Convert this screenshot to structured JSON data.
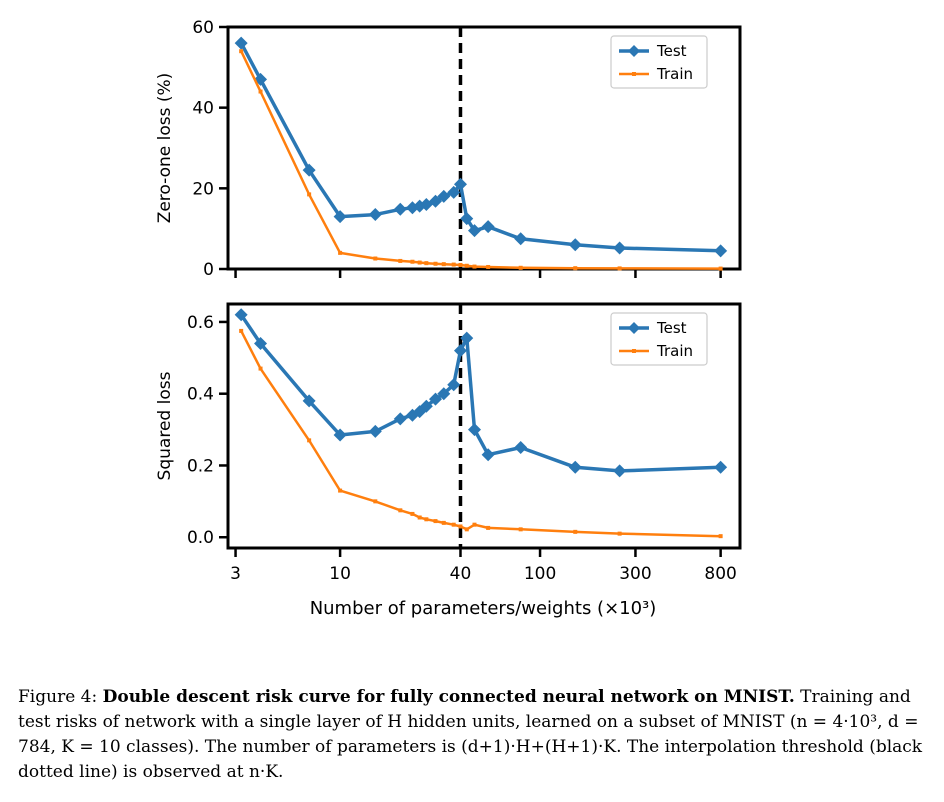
{
  "figure": {
    "xlabel": "Number of parameters/weights (×10³)",
    "x_ticks": [
      3,
      10,
      40,
      100,
      300,
      800
    ],
    "x_tick_labels": [
      "3",
      "10",
      "40",
      "100",
      "300",
      "800"
    ],
    "threshold_x": 40,
    "colors": {
      "test": "#2a77b4",
      "train": "#ff7f0e",
      "threshold": "#000000"
    }
  },
  "chart_data": [
    {
      "type": "line",
      "xscale": "log",
      "ylabel": "Zero-one loss (%)",
      "ylim": [
        0,
        60
      ],
      "y_ticks": [
        0,
        20,
        40,
        60
      ],
      "y_tick_labels": [
        "0",
        "20",
        "40",
        "60"
      ],
      "legend": "top-right",
      "series": [
        {
          "name": "Test",
          "x": [
            3.2,
            4,
            7,
            10,
            15,
            20,
            23,
            25,
            27,
            30,
            33,
            37,
            40,
            43,
            47,
            55,
            80,
            150,
            250,
            800
          ],
          "y": [
            56,
            47,
            24.5,
            13,
            13.5,
            14.8,
            15.2,
            15.6,
            16,
            16.8,
            18,
            19,
            21,
            12.5,
            9.5,
            10.5,
            7.5,
            6,
            5.2,
            4.5
          ]
        },
        {
          "name": "Train",
          "x": [
            3.2,
            4,
            7,
            10,
            15,
            20,
            23,
            25,
            27,
            30,
            33,
            37,
            40,
            43,
            47,
            55,
            80,
            150,
            250,
            800
          ],
          "y": [
            54,
            44,
            18.5,
            4,
            2.6,
            2,
            1.8,
            1.6,
            1.45,
            1.3,
            1.2,
            1.1,
            1.0,
            0.8,
            0.6,
            0.5,
            0.3,
            0.2,
            0.15,
            0.1
          ]
        }
      ]
    },
    {
      "type": "line",
      "xscale": "log",
      "ylabel": "Squared loss",
      "ylim": [
        -0.03,
        0.65
      ],
      "y_ticks": [
        0.0,
        0.2,
        0.4,
        0.6
      ],
      "y_tick_labels": [
        "0.0",
        "0.2",
        "0.4",
        "0.6"
      ],
      "legend": "top-right",
      "series": [
        {
          "name": "Test",
          "x": [
            3.2,
            4,
            7,
            10,
            15,
            20,
            23,
            25,
            27,
            30,
            33,
            37,
            40,
            43,
            47,
            55,
            80,
            150,
            250,
            800
          ],
          "y": [
            0.62,
            0.54,
            0.38,
            0.285,
            0.295,
            0.33,
            0.34,
            0.35,
            0.365,
            0.385,
            0.4,
            0.425,
            0.52,
            0.555,
            0.3,
            0.23,
            0.25,
            0.195,
            0.185,
            0.195
          ]
        },
        {
          "name": "Train",
          "x": [
            3.2,
            4,
            7,
            10,
            15,
            20,
            23,
            25,
            27,
            30,
            33,
            37,
            40,
            43,
            47,
            55,
            80,
            150,
            250,
            800
          ],
          "y": [
            0.575,
            0.47,
            0.27,
            0.13,
            0.1,
            0.075,
            0.065,
            0.055,
            0.05,
            0.045,
            0.04,
            0.035,
            0.03,
            0.022,
            0.035,
            0.026,
            0.022,
            0.015,
            0.01,
            0.003
          ]
        }
      ]
    }
  ],
  "caption": {
    "label": "Figure 4:",
    "title": "Double descent risk curve for fully connected neural network on MNIST.",
    "body": "Training and test risks of network with a single layer of H hidden units, learned on a subset of MNIST (n = 4·10³, d = 784, K = 10 classes). The number of parameters is (d+1)·H+(H+1)·K. The interpolation threshold (black dotted line) is observed at n·K."
  }
}
